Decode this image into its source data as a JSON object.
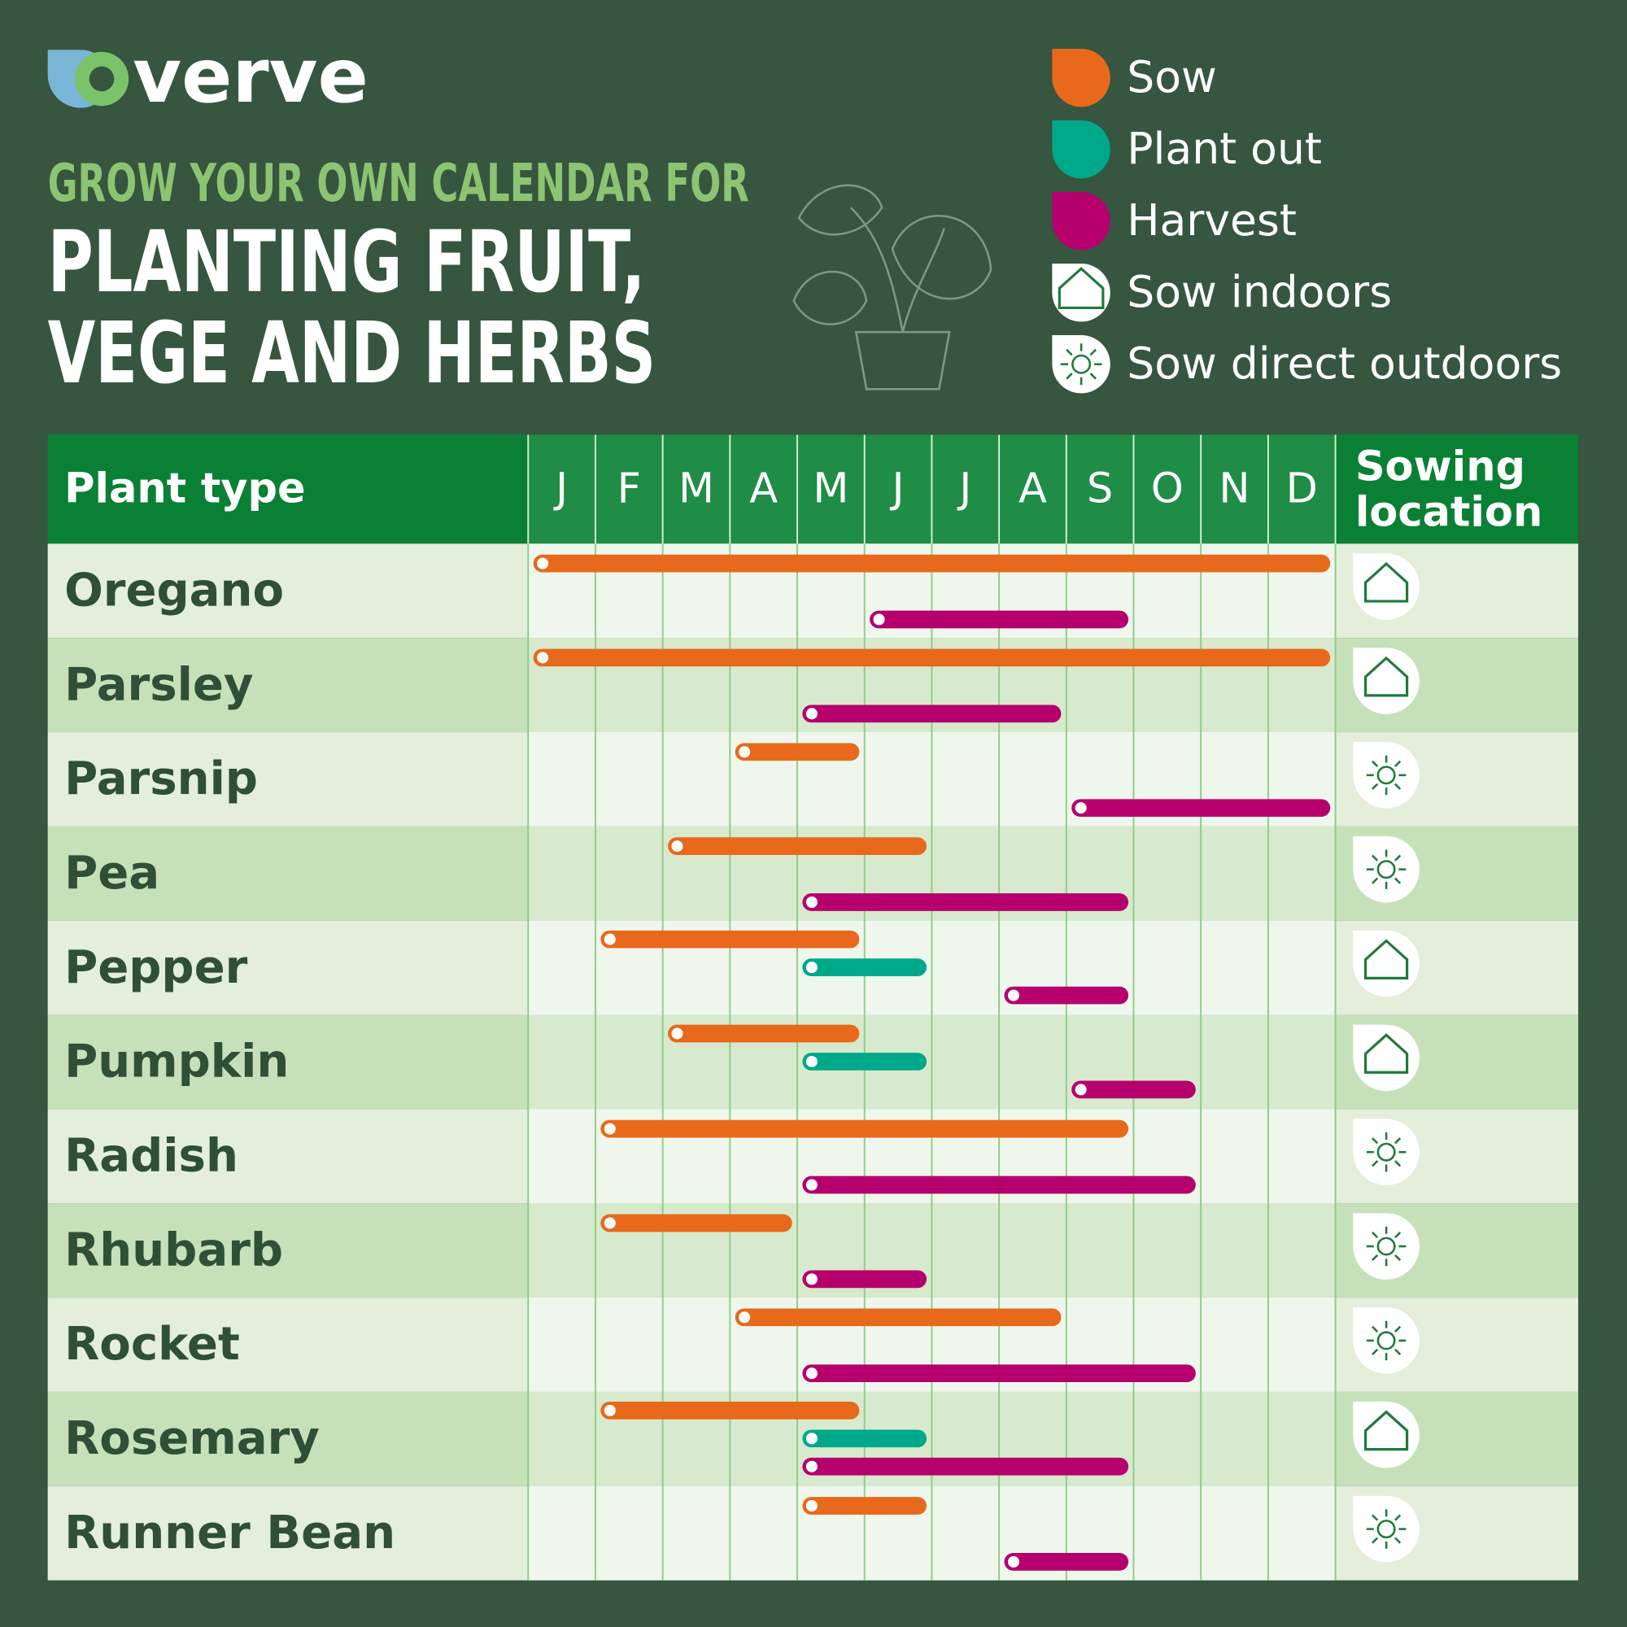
{
  "logo": "verve",
  "header": {
    "kicker": "GROW YOUR OWN CALENDAR FOR",
    "title_lines": [
      "PLANTING FRUIT,",
      "VEGE AND HERBS"
    ]
  },
  "legend": {
    "sow": {
      "label": "Sow",
      "color": "#e8691b"
    },
    "plant_out": {
      "label": "Plant out",
      "color": "#00a88a"
    },
    "harvest": {
      "label": "Harvest",
      "color": "#b5006e"
    },
    "indoors": {
      "label": "Sow indoors"
    },
    "outdoors": {
      "label": "Sow direct outdoors"
    }
  },
  "table": {
    "columns": {
      "plant": "Plant type",
      "months": [
        "J",
        "F",
        "M",
        "A",
        "M",
        "J",
        "J",
        "A",
        "S",
        "O",
        "N",
        "D"
      ],
      "location": "Sowing location"
    },
    "rows": [
      {
        "plant": "Oregano",
        "sow": [
          1,
          12
        ],
        "harvest": [
          6,
          9
        ],
        "location": "indoors"
      },
      {
        "plant": "Parsley",
        "sow": [
          1,
          12
        ],
        "harvest": [
          5,
          8
        ],
        "location": "indoors"
      },
      {
        "plant": "Parsnip",
        "sow": [
          4,
          5
        ],
        "harvest": [
          9,
          12
        ],
        "location": "outdoors"
      },
      {
        "plant": "Pea",
        "sow": [
          3,
          6
        ],
        "harvest": [
          5,
          9
        ],
        "location": "outdoors"
      },
      {
        "plant": "Pepper",
        "sow": [
          2,
          5
        ],
        "plant_out": [
          5,
          6
        ],
        "harvest": [
          8,
          9
        ],
        "location": "indoors"
      },
      {
        "plant": "Pumpkin",
        "sow": [
          3,
          5
        ],
        "plant_out": [
          5,
          6
        ],
        "harvest": [
          9,
          10
        ],
        "location": "indoors"
      },
      {
        "plant": "Radish",
        "sow": [
          2,
          9
        ],
        "harvest": [
          5,
          10
        ],
        "location": "outdoors"
      },
      {
        "plant": "Rhubarb",
        "sow": [
          2,
          4
        ],
        "harvest": [
          5,
          6
        ],
        "location": "outdoors"
      },
      {
        "plant": "Rocket",
        "sow": [
          4,
          8
        ],
        "harvest": [
          5,
          10
        ],
        "location": "outdoors"
      },
      {
        "plant": "Rosemary",
        "sow": [
          2,
          5
        ],
        "plant_out": [
          5,
          6
        ],
        "harvest": [
          5,
          9
        ],
        "location": "indoors"
      },
      {
        "plant": "Runner Bean",
        "sow": [
          5,
          6
        ],
        "harvest": [
          8,
          9
        ],
        "location": "outdoors"
      }
    ]
  }
}
